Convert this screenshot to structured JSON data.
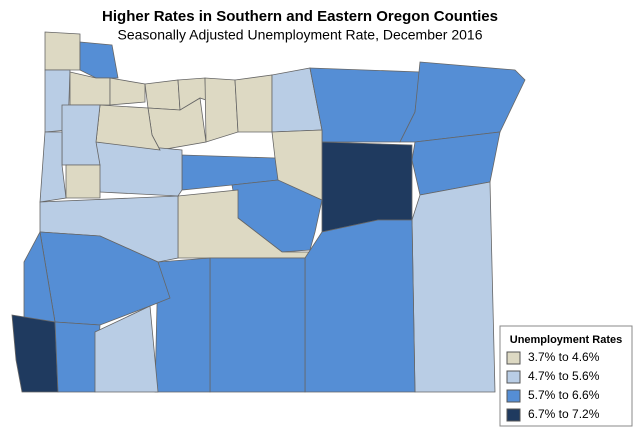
{
  "title": "Higher Rates in Southern and Eastern Oregon Counties",
  "subtitle": "Seasonally Adjusted Unemployment Rate, December 2016",
  "legend": {
    "title": "Unemployment Rates",
    "items": [
      {
        "label": "3.7% to 4.6%",
        "color": "#ddd9c3"
      },
      {
        "label": "4.7% to 5.6%",
        "color": "#b9cde5"
      },
      {
        "label": "5.7% to 6.6%",
        "color": "#558ed5"
      },
      {
        "label": "6.7% to 7.2%",
        "color": "#1f3a5f"
      }
    ]
  }
}
